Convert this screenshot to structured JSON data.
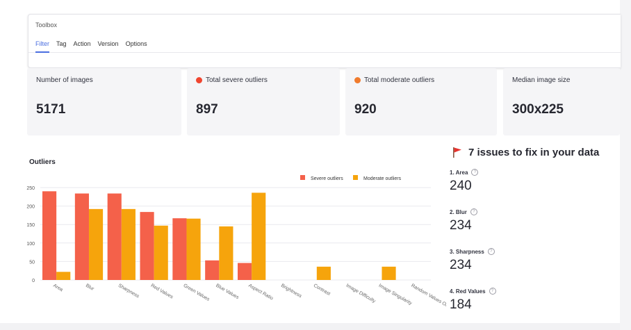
{
  "toolbox": {
    "title": "Toolbox",
    "tabs": [
      "Filter",
      "Tag",
      "Action",
      "Version",
      "Options"
    ],
    "active_tab": "Filter"
  },
  "metrics": [
    {
      "label": "Number of images",
      "value": "5171"
    },
    {
      "label": "Total severe outliers",
      "value": "897",
      "dot_color": "#f0452f"
    },
    {
      "label": "Total moderate outliers",
      "value": "920",
      "dot_color": "#f07b2d"
    },
    {
      "label": "Median image size",
      "value": "300x225"
    }
  ],
  "colors": {
    "severe": "#f4614a",
    "moderate": "#f6a40c",
    "accent": "#4a6ee0"
  },
  "chart_data": {
    "type": "bar",
    "title": "Outliers",
    "categories": [
      "Area",
      "Blur",
      "Sharpness",
      "Red Values",
      "Green Values",
      "Blue Values",
      "Aspect Ratio",
      "Brightness",
      "Contrast",
      "Image Difficulty",
      "Image Singularity",
      "Random Values On Images"
    ],
    "series": [
      {
        "name": "Severe outliers",
        "values": [
          240,
          234,
          234,
          184,
          167,
          53,
          46,
          0,
          0,
          0,
          0,
          0
        ]
      },
      {
        "name": "Moderate outliers",
        "values": [
          22,
          192,
          192,
          147,
          166,
          145,
          236,
          0,
          36,
          0,
          36,
          0
        ]
      }
    ],
    "ylim": [
      0,
      250
    ],
    "yticks": [
      "0",
      "50",
      "100",
      "150",
      "200",
      "250"
    ],
    "legend": "top-right",
    "grid": true
  },
  "issues": {
    "title": "7 issues to fix in your data",
    "items": [
      {
        "label": "1. Area",
        "value": "240"
      },
      {
        "label": "2. Blur",
        "value": "234"
      },
      {
        "label": "3. Sharpness",
        "value": "234"
      },
      {
        "label": "4. Red Values",
        "value": "184"
      }
    ]
  }
}
